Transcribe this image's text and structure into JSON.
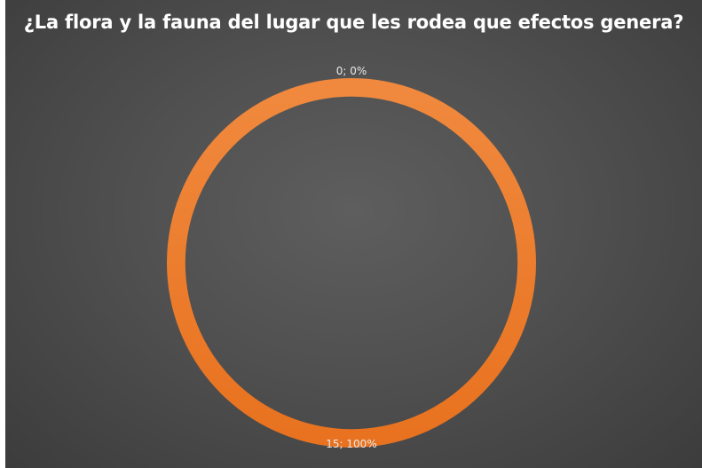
{
  "chart_data": {
    "type": "pie",
    "title": "¿La flora y la fauna del lugar que les rodea que efectos genera?",
    "slices": [
      {
        "label": "0; 0%",
        "value": 0,
        "percent": 0,
        "color": "#ED7D31"
      },
      {
        "label": "15; 100%",
        "value": 15,
        "percent": 100,
        "color": "#ED7D31"
      }
    ],
    "hole": 0.9,
    "legend": "none"
  },
  "colors": {
    "background": "#505050",
    "ring_start": "#F0893E",
    "ring_end": "#E8721F",
    "title": "#FFFFFF",
    "labels": "#E9E9E9"
  }
}
